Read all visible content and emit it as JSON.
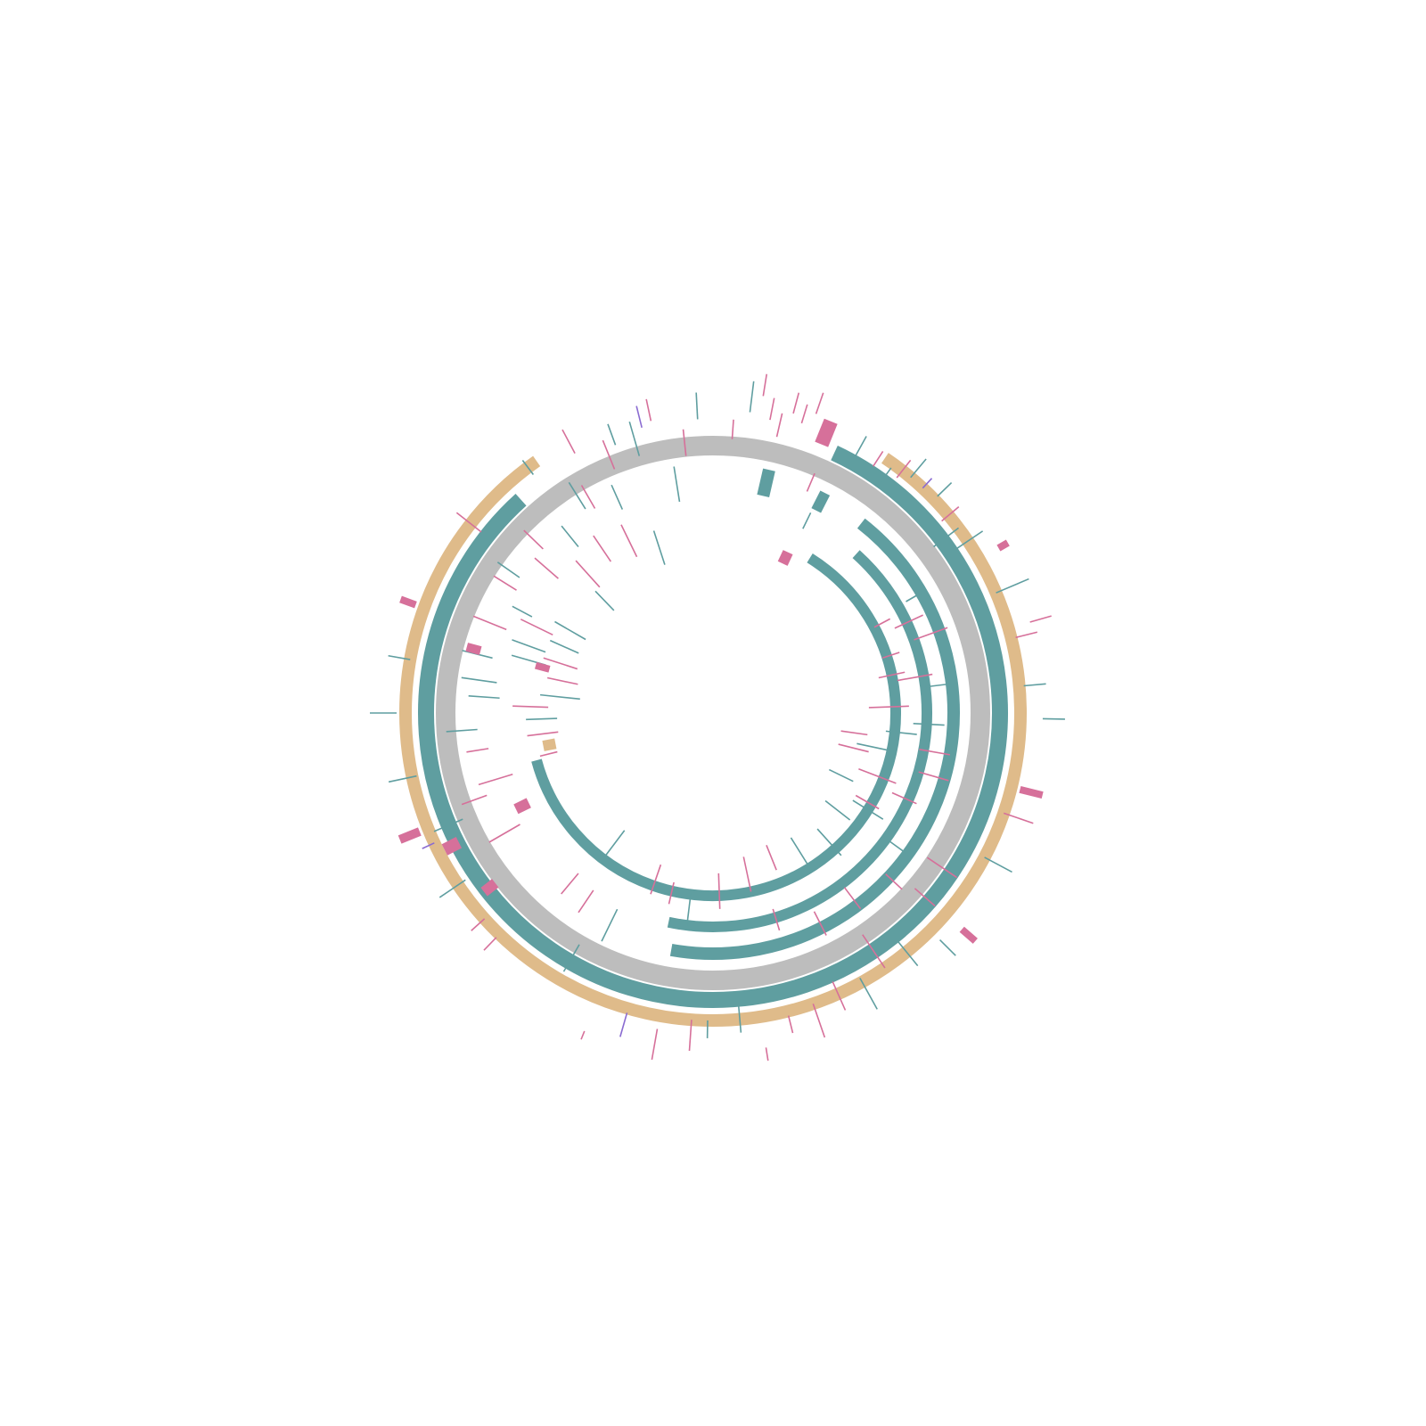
{
  "colors": {
    "background": "#ffffff",
    "ring": "#bdbdbd",
    "teal": "#5f9ea0",
    "pink": "#d6709a",
    "tan": "#dfbb8a",
    "purple": "#8a6bd1"
  },
  "diagram": {
    "type": "circular-genome-map",
    "title": "",
    "ring": {
      "radius": 300,
      "width": 22,
      "color_key": "ring"
    },
    "arcs": [
      {
        "name": "outer-tan-arc-right",
        "r": 345,
        "start": 34,
        "end": 180,
        "width": 14,
        "color_key": "tan"
      },
      {
        "name": "outer-tan-arc-left",
        "r": 345,
        "start": 180,
        "end": 325,
        "width": 14,
        "color_key": "tan"
      },
      {
        "name": "teal-arc-outer",
        "r": 322,
        "start": 25,
        "end": 180,
        "width": 18,
        "color_key": "teal"
      },
      {
        "name": "teal-arc-left",
        "r": 322,
        "start": 180,
        "end": 318,
        "width": 18,
        "color_key": "teal"
      },
      {
        "name": "teal-arc-2",
        "r": 270,
        "start": 38,
        "end": 190,
        "width": 14,
        "color_key": "teal"
      },
      {
        "name": "teal-arc-3",
        "r": 240,
        "start": 42,
        "end": 192,
        "width": 12,
        "color_key": "teal"
      },
      {
        "name": "teal-arc-inner",
        "r": 205,
        "start": 32,
        "end": 255,
        "width": 12,
        "color_key": "teal"
      }
    ],
    "blocks": [
      {
        "name": "pink-block-top",
        "r": 325,
        "a": 22,
        "len": 28,
        "w": 16,
        "color_key": "pink"
      },
      {
        "name": "teal-block-1",
        "r": 250,
        "a": 13,
        "len": 30,
        "w": 14,
        "color_key": "teal"
      },
      {
        "name": "teal-block-2",
        "r": 255,
        "a": 27,
        "len": 22,
        "w": 12,
        "color_key": "teal"
      },
      {
        "name": "pink-block-inner",
        "r": 185,
        "a": 25,
        "len": 14,
        "w": 12,
        "color_key": "pink"
      },
      {
        "name": "pink-block-right",
        "r": 370,
        "a": 60,
        "len": 12,
        "w": 8,
        "color_key": "pink"
      },
      {
        "name": "pink-block-right-2",
        "r": 355,
        "a": 104,
        "len": 26,
        "w": 8,
        "color_key": "pink"
      },
      {
        "name": "pink-block-br",
        "r": 370,
        "a": 131,
        "len": 20,
        "w": 8,
        "color_key": "pink"
      },
      {
        "name": "pink-block-left-1",
        "r": 355,
        "a": 248,
        "len": 24,
        "w": 10,
        "color_key": "pink"
      },
      {
        "name": "pink-block-left-2",
        "r": 355,
        "a": 290,
        "len": 18,
        "w": 8,
        "color_key": "pink"
      },
      {
        "name": "pink-block-left-3",
        "r": 320,
        "a": 243,
        "len": 18,
        "w": 14,
        "color_key": "pink"
      },
      {
        "name": "pink-block-left-4",
        "r": 310,
        "a": 232,
        "len": 16,
        "w": 12,
        "color_key": "pink"
      },
      {
        "name": "pink-block-left-5",
        "r": 270,
        "a": 285,
        "len": 16,
        "w": 10,
        "color_key": "pink"
      },
      {
        "name": "pink-block-center",
        "r": 190,
        "a": 285,
        "len": 16,
        "w": 8,
        "color_key": "pink"
      },
      {
        "name": "pink-block-lower",
        "r": 230,
        "a": 244,
        "len": 16,
        "w": 12,
        "color_key": "pink"
      },
      {
        "name": "tan-block-center",
        "r": 180,
        "a": 259,
        "len": 14,
        "w": 12,
        "color_key": "tan"
      }
    ],
    "segments": [
      {
        "a": 4,
        "r1": 308,
        "r2": 330,
        "c": "pink"
      },
      {
        "a": 7,
        "r1": 340,
        "r2": 375,
        "c": "teal"
      },
      {
        "a": 9,
        "r1": 360,
        "r2": 385,
        "c": "pink"
      },
      {
        "a": 11,
        "r1": 335,
        "r2": 360,
        "c": "pink"
      },
      {
        "a": 13,
        "r1": 318,
        "r2": 345,
        "c": "pink"
      },
      {
        "a": 15,
        "r1": 348,
        "r2": 372,
        "c": "pink"
      },
      {
        "a": 17,
        "r1": 340,
        "r2": 362,
        "c": "pink"
      },
      {
        "a": 19,
        "r1": 355,
        "r2": 380,
        "c": "pink"
      },
      {
        "a": 23,
        "r1": 270,
        "r2": 292,
        "c": "pink"
      },
      {
        "a": 26,
        "r1": 230,
        "r2": 250,
        "c": "teal"
      },
      {
        "a": 29,
        "r1": 330,
        "r2": 355,
        "c": "teal"
      },
      {
        "a": 33,
        "r1": 330,
        "r2": 350,
        "c": "pink"
      },
      {
        "a": 36,
        "r1": 315,
        "r2": 340,
        "c": "teal"
      },
      {
        "a": 38,
        "r1": 335,
        "r2": 360,
        "c": "pink"
      },
      {
        "a": 40,
        "r1": 345,
        "r2": 372,
        "c": "teal"
      },
      {
        "a": 43,
        "r1": 345,
        "r2": 360,
        "c": "purple"
      },
      {
        "a": 46,
        "r1": 350,
        "r2": 372,
        "c": "teal"
      },
      {
        "a": 50,
        "r1": 335,
        "r2": 360,
        "c": "pink"
      },
      {
        "a": 53,
        "r1": 310,
        "r2": 345,
        "c": "teal"
      },
      {
        "a": 56,
        "r1": 330,
        "r2": 365,
        "c": "teal"
      },
      {
        "a": 60,
        "r1": 250,
        "r2": 275,
        "c": "teal"
      },
      {
        "a": 62,
        "r1": 205,
        "r2": 225,
        "c": "pink"
      },
      {
        "a": 65,
        "r1": 225,
        "r2": 260,
        "c": "pink"
      },
      {
        "a": 67,
        "r1": 345,
        "r2": 385,
        "c": "teal"
      },
      {
        "a": 70,
        "r1": 240,
        "r2": 280,
        "c": "pink"
      },
      {
        "a": 72,
        "r1": 200,
        "r2": 220,
        "c": "pink"
      },
      {
        "a": 74,
        "r1": 370,
        "r2": 395,
        "c": "pink"
      },
      {
        "a": 76,
        "r1": 350,
        "r2": 375,
        "c": "pink"
      },
      {
        "a": 78,
        "r1": 190,
        "r2": 220,
        "c": "pink"
      },
      {
        "a": 80,
        "r1": 210,
        "r2": 250,
        "c": "pink"
      },
      {
        "a": 83,
        "r1": 240,
        "r2": 275,
        "c": "teal"
      },
      {
        "a": 85,
        "r1": 350,
        "r2": 375,
        "c": "teal"
      },
      {
        "a": 88,
        "r1": 175,
        "r2": 220,
        "c": "pink"
      },
      {
        "a": 91,
        "r1": 370,
        "r2": 395,
        "c": "teal"
      },
      {
        "a": 93,
        "r1": 225,
        "r2": 260,
        "c": "teal"
      },
      {
        "a": 96,
        "r1": 195,
        "r2": 230,
        "c": "teal"
      },
      {
        "a": 98,
        "r1": 145,
        "r2": 175,
        "c": "pink"
      },
      {
        "a": 100,
        "r1": 235,
        "r2": 270,
        "c": "pink"
      },
      {
        "a": 102,
        "r1": 165,
        "r2": 210,
        "c": "teal"
      },
      {
        "a": 104,
        "r1": 145,
        "r2": 180,
        "c": "pink"
      },
      {
        "a": 106,
        "r1": 240,
        "r2": 275,
        "c": "pink"
      },
      {
        "a": 109,
        "r1": 345,
        "r2": 380,
        "c": "pink"
      },
      {
        "a": 111,
        "r1": 175,
        "r2": 220,
        "c": "pink"
      },
      {
        "a": 114,
        "r1": 220,
        "r2": 250,
        "c": "pink"
      },
      {
        "a": 116,
        "r1": 145,
        "r2": 175,
        "c": "teal"
      },
      {
        "a": 118,
        "r1": 345,
        "r2": 380,
        "c": "teal"
      },
      {
        "a": 120,
        "r1": 185,
        "r2": 215,
        "c": "pink"
      },
      {
        "a": 122,
        "r1": 185,
        "r2": 225,
        "c": "teal"
      },
      {
        "a": 124,
        "r1": 290,
        "r2": 330,
        "c": "pink"
      },
      {
        "a": 126,
        "r1": 245,
        "r2": 275,
        "c": "teal"
      },
      {
        "a": 128,
        "r1": 160,
        "r2": 195,
        "c": "teal"
      },
      {
        "a": 131,
        "r1": 300,
        "r2": 330,
        "c": "pink"
      },
      {
        "a": 133,
        "r1": 265,
        "r2": 290,
        "c": "pink"
      },
      {
        "a": 135,
        "r1": 360,
        "r2": 385,
        "c": "teal"
      },
      {
        "a": 138,
        "r1": 175,
        "r2": 215,
        "c": "teal"
      },
      {
        "a": 141,
        "r1": 330,
        "r2": 365,
        "c": "teal"
      },
      {
        "a": 143,
        "r1": 245,
        "r2": 275,
        "c": "pink"
      },
      {
        "a": 146,
        "r1": 300,
        "r2": 345,
        "c": "pink"
      },
      {
        "a": 148,
        "r1": 165,
        "r2": 210,
        "c": "teal"
      },
      {
        "a": 151,
        "r1": 340,
        "r2": 380,
        "c": "teal"
      },
      {
        "a": 153,
        "r1": 250,
        "r2": 280,
        "c": "pink"
      },
      {
        "a": 156,
        "r1": 330,
        "r2": 365,
        "c": "pink"
      },
      {
        "a": 158,
        "r1": 160,
        "r2": 190,
        "c": "pink"
      },
      {
        "a": 161,
        "r1": 345,
        "r2": 385,
        "c": "pink"
      },
      {
        "a": 163,
        "r1": 230,
        "r2": 255,
        "c": "pink"
      },
      {
        "a": 166,
        "r1": 350,
        "r2": 370,
        "c": "pink"
      },
      {
        "a": 168,
        "r1": 165,
        "r2": 205,
        "c": "pink"
      },
      {
        "a": 171,
        "r1": 380,
        "r2": 395,
        "c": "pink"
      },
      {
        "a": 175,
        "r1": 330,
        "r2": 360,
        "c": "teal"
      },
      {
        "a": 178,
        "r1": 180,
        "r2": 220,
        "c": "pink"
      },
      {
        "a": 181,
        "r1": 345,
        "r2": 365,
        "c": "teal"
      },
      {
        "a": 184,
        "r1": 345,
        "r2": 380,
        "c": "pink"
      },
      {
        "a": 187,
        "r1": 200,
        "r2": 240,
        "c": "teal"
      },
      {
        "a": 190,
        "r1": 360,
        "r2": 395,
        "c": "pink"
      },
      {
        "a": 193,
        "r1": 195,
        "r2": 220,
        "c": "pink"
      },
      {
        "a": 196,
        "r1": 350,
        "r2": 378,
        "c": "purple"
      },
      {
        "a": 199,
        "r1": 180,
        "r2": 215,
        "c": "pink"
      },
      {
        "a": 202,
        "r1": 385,
        "r2": 395,
        "c": "pink"
      },
      {
        "a": 206,
        "r1": 245,
        "r2": 285,
        "c": "teal"
      },
      {
        "a": 210,
        "r1": 300,
        "r2": 335,
        "c": "teal"
      },
      {
        "a": 214,
        "r1": 240,
        "r2": 270,
        "c": "pink"
      },
      {
        "a": 217,
        "r1": 165,
        "r2": 210,
        "c": "teal"
      },
      {
        "a": 220,
        "r1": 235,
        "r2": 265,
        "c": "pink"
      },
      {
        "a": 224,
        "r1": 350,
        "r2": 370,
        "c": "pink"
      },
      {
        "a": 228,
        "r1": 345,
        "r2": 365,
        "c": "pink"
      },
      {
        "a": 236,
        "r1": 335,
        "r2": 370,
        "c": "teal"
      },
      {
        "a": 240,
        "r1": 250,
        "r2": 290,
        "c": "pink"
      },
      {
        "a": 245,
        "r1": 345,
        "r2": 360,
        "c": "purple"
      },
      {
        "a": 247,
        "r1": 305,
        "r2": 340,
        "c": "teal"
      },
      {
        "a": 250,
        "r1": 270,
        "r2": 300,
        "c": "pink"
      },
      {
        "a": 253,
        "r1": 235,
        "r2": 275,
        "c": "pink"
      },
      {
        "a": 256,
        "r1": 180,
        "r2": 200,
        "c": "pink"
      },
      {
        "a": 258,
        "r1": 340,
        "r2": 372,
        "c": "teal"
      },
      {
        "a": 261,
        "r1": 255,
        "r2": 280,
        "c": "pink"
      },
      {
        "a": 263,
        "r1": 175,
        "r2": 210,
        "c": "pink"
      },
      {
        "a": 266,
        "r1": 265,
        "r2": 300,
        "c": "teal"
      },
      {
        "a": 268,
        "r1": 175,
        "r2": 210,
        "c": "teal"
      },
      {
        "a": 270,
        "r1": 355,
        "r2": 385,
        "c": "teal"
      },
      {
        "a": 272,
        "r1": 185,
        "r2": 225,
        "c": "pink"
      },
      {
        "a": 274,
        "r1": 240,
        "r2": 275,
        "c": "teal"
      },
      {
        "a": 276,
        "r1": 150,
        "r2": 195,
        "c": "teal"
      },
      {
        "a": 278,
        "r1": 245,
        "r2": 285,
        "c": "teal"
      },
      {
        "a": 280,
        "r1": 345,
        "r2": 370,
        "c": "teal"
      },
      {
        "a": 282,
        "r1": 155,
        "r2": 190,
        "c": "pink"
      },
      {
        "a": 284,
        "r1": 255,
        "r2": 290,
        "c": "teal"
      },
      {
        "a": 286,
        "r1": 195,
        "r2": 235,
        "c": "teal"
      },
      {
        "a": 288,
        "r1": 160,
        "r2": 200,
        "c": "pink"
      },
      {
        "a": 290,
        "r1": 200,
        "r2": 240,
        "c": "teal"
      },
      {
        "a": 292,
        "r1": 250,
        "r2": 290,
        "c": "pink"
      },
      {
        "a": 294,
        "r1": 165,
        "r2": 200,
        "c": "teal"
      },
      {
        "a": 296,
        "r1": 200,
        "r2": 240,
        "c": "pink"
      },
      {
        "a": 298,
        "r1": 230,
        "r2": 255,
        "c": "teal"
      },
      {
        "a": 300,
        "r1": 165,
        "r2": 205,
        "c": "teal"
      },
      {
        "a": 302,
        "r1": 260,
        "r2": 290,
        "c": "pink"
      },
      {
        "a": 305,
        "r1": 265,
        "r2": 295,
        "c": "teal"
      },
      {
        "a": 308,
        "r1": 330,
        "r2": 365,
        "c": "pink"
      },
      {
        "a": 311,
        "r1": 230,
        "r2": 265,
        "c": "pink"
      },
      {
        "a": 314,
        "r1": 265,
        "r2": 295,
        "c": "pink"
      },
      {
        "a": 316,
        "r1": 160,
        "r2": 190,
        "c": "teal"
      },
      {
        "a": 318,
        "r1": 190,
        "r2": 230,
        "c": "pink"
      },
      {
        "a": 321,
        "r1": 240,
        "r2": 270,
        "c": "teal"
      },
      {
        "a": 323,
        "r1": 335,
        "r2": 355,
        "c": "teal"
      },
      {
        "a": 326,
        "r1": 205,
        "r2": 240,
        "c": "pink"
      },
      {
        "a": 328,
        "r1": 270,
        "r2": 305,
        "c": "teal"
      },
      {
        "a": 330,
        "r1": 265,
        "r2": 295,
        "c": "pink"
      },
      {
        "a": 332,
        "r1": 330,
        "r2": 360,
        "c": "pink"
      },
      {
        "a": 334,
        "r1": 195,
        "r2": 235,
        "c": "pink"
      },
      {
        "a": 336,
        "r1": 250,
        "r2": 280,
        "c": "teal"
      },
      {
        "a": 338,
        "r1": 295,
        "r2": 330,
        "c": "pink"
      },
      {
        "a": 340,
        "r1": 320,
        "r2": 345,
        "c": "teal"
      },
      {
        "a": 342,
        "r1": 175,
        "r2": 215,
        "c": "teal"
      },
      {
        "a": 344,
        "r1": 300,
        "r2": 340,
        "c": "teal"
      },
      {
        "a": 346,
        "r1": 330,
        "r2": 355,
        "c": "purple"
      },
      {
        "a": 348,
        "r1": 335,
        "r2": 360,
        "c": "pink"
      },
      {
        "a": 351,
        "r1": 240,
        "r2": 280,
        "c": "teal"
      },
      {
        "a": 354,
        "r1": 290,
        "r2": 320,
        "c": "pink"
      },
      {
        "a": 357,
        "r1": 330,
        "r2": 360,
        "c": "teal"
      }
    ]
  }
}
